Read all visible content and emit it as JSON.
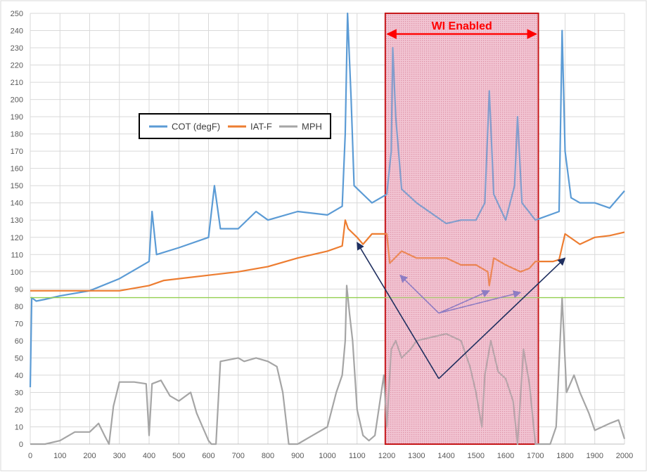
{
  "chart_data": {
    "type": "line",
    "title": "",
    "xlabel": "",
    "ylabel": "",
    "xlim": [
      0,
      2000
    ],
    "ylim": [
      0,
      250
    ],
    "x_ticks": [
      "0",
      "100",
      "200",
      "300",
      "400",
      "500",
      "600",
      "700",
      "800",
      "900",
      "1000",
      "1100",
      "1200",
      "1300",
      "1400",
      "1500",
      "1600",
      "1700",
      "1800",
      "1900",
      "2000"
    ],
    "y_ticks": [
      "0",
      "10",
      "20",
      "30",
      "40",
      "50",
      "60",
      "70",
      "80",
      "90",
      "100",
      "110",
      "120",
      "130",
      "140",
      "150",
      "160",
      "170",
      "180",
      "190",
      "200",
      "210",
      "220",
      "230",
      "240",
      "250"
    ],
    "grid": "vertical and horizontal major gridlines",
    "legend_position": "upper-left, inside plot area",
    "series": [
      {
        "name": "COT (degF)",
        "color": "#5b9bd5",
        "points": [
          [
            0,
            33
          ],
          [
            5,
            85
          ],
          [
            20,
            83
          ],
          [
            50,
            84
          ],
          [
            100,
            86
          ],
          [
            200,
            89
          ],
          [
            300,
            96
          ],
          [
            400,
            106
          ],
          [
            410,
            135
          ],
          [
            425,
            110
          ],
          [
            500,
            114
          ],
          [
            600,
            120
          ],
          [
            620,
            150
          ],
          [
            640,
            125
          ],
          [
            700,
            125
          ],
          [
            760,
            135
          ],
          [
            800,
            130
          ],
          [
            900,
            135
          ],
          [
            1000,
            133
          ],
          [
            1050,
            138
          ],
          [
            1060,
            180
          ],
          [
            1068,
            250
          ],
          [
            1080,
            200
          ],
          [
            1090,
            150
          ],
          [
            1120,
            145
          ],
          [
            1150,
            140
          ],
          [
            1200,
            145
          ],
          [
            1215,
            170
          ],
          [
            1220,
            230
          ],
          [
            1230,
            190
          ],
          [
            1250,
            148
          ],
          [
            1300,
            140
          ],
          [
            1400,
            128
          ],
          [
            1450,
            130
          ],
          [
            1500,
            130
          ],
          [
            1530,
            140
          ],
          [
            1545,
            205
          ],
          [
            1560,
            145
          ],
          [
            1600,
            130
          ],
          [
            1630,
            150
          ],
          [
            1640,
            190
          ],
          [
            1655,
            140
          ],
          [
            1700,
            130
          ],
          [
            1780,
            135
          ],
          [
            1790,
            240
          ],
          [
            1800,
            170
          ],
          [
            1820,
            143
          ],
          [
            1850,
            140
          ],
          [
            1900,
            140
          ],
          [
            1950,
            137
          ],
          [
            2000,
            147
          ]
        ]
      },
      {
        "name": "IAT-F",
        "color": "#ed7d31",
        "points": [
          [
            0,
            89
          ],
          [
            100,
            89
          ],
          [
            200,
            89
          ],
          [
            300,
            89
          ],
          [
            400,
            92
          ],
          [
            450,
            95
          ],
          [
            500,
            96
          ],
          [
            600,
            98
          ],
          [
            700,
            100
          ],
          [
            800,
            103
          ],
          [
            900,
            108
          ],
          [
            1000,
            112
          ],
          [
            1050,
            115
          ],
          [
            1060,
            130
          ],
          [
            1070,
            125
          ],
          [
            1100,
            120
          ],
          [
            1120,
            116
          ],
          [
            1150,
            122
          ],
          [
            1200,
            122
          ],
          [
            1210,
            105
          ],
          [
            1250,
            112
          ],
          [
            1300,
            108
          ],
          [
            1400,
            108
          ],
          [
            1450,
            104
          ],
          [
            1500,
            104
          ],
          [
            1540,
            100
          ],
          [
            1545,
            92
          ],
          [
            1560,
            108
          ],
          [
            1600,
            104
          ],
          [
            1650,
            100
          ],
          [
            1680,
            102
          ],
          [
            1700,
            106
          ],
          [
            1760,
            106
          ],
          [
            1780,
            107
          ],
          [
            1800,
            122
          ],
          [
            1850,
            116
          ],
          [
            1900,
            120
          ],
          [
            1950,
            121
          ],
          [
            2000,
            123
          ]
        ]
      },
      {
        "name": "MPH",
        "color": "#a5a5a5",
        "points": [
          [
            0,
            0
          ],
          [
            50,
            0
          ],
          [
            100,
            2
          ],
          [
            150,
            7
          ],
          [
            200,
            7
          ],
          [
            230,
            12
          ],
          [
            250,
            5
          ],
          [
            265,
            0
          ],
          [
            280,
            22
          ],
          [
            300,
            36
          ],
          [
            350,
            36
          ],
          [
            390,
            35
          ],
          [
            400,
            5
          ],
          [
            410,
            35
          ],
          [
            440,
            37
          ],
          [
            470,
            28
          ],
          [
            500,
            25
          ],
          [
            540,
            30
          ],
          [
            560,
            18
          ],
          [
            580,
            10
          ],
          [
            600,
            2
          ],
          [
            610,
            0
          ],
          [
            625,
            0
          ],
          [
            640,
            48
          ],
          [
            700,
            50
          ],
          [
            720,
            48
          ],
          [
            760,
            50
          ],
          [
            800,
            48
          ],
          [
            830,
            45
          ],
          [
            850,
            30
          ],
          [
            870,
            0
          ],
          [
            900,
            0
          ],
          [
            950,
            5
          ],
          [
            1000,
            10
          ],
          [
            1030,
            30
          ],
          [
            1050,
            40
          ],
          [
            1060,
            60
          ],
          [
            1065,
            92
          ],
          [
            1075,
            75
          ],
          [
            1085,
            60
          ],
          [
            1100,
            20
          ],
          [
            1120,
            5
          ],
          [
            1140,
            2
          ],
          [
            1160,
            5
          ],
          [
            1190,
            40
          ],
          [
            1200,
            10
          ],
          [
            1215,
            55
          ],
          [
            1230,
            60
          ],
          [
            1250,
            50
          ],
          [
            1280,
            55
          ],
          [
            1300,
            60
          ],
          [
            1350,
            62
          ],
          [
            1400,
            64
          ],
          [
            1450,
            60
          ],
          [
            1480,
            45
          ],
          [
            1500,
            30
          ],
          [
            1520,
            10
          ],
          [
            1530,
            40
          ],
          [
            1550,
            60
          ],
          [
            1575,
            42
          ],
          [
            1600,
            38
          ],
          [
            1625,
            25
          ],
          [
            1640,
            0
          ],
          [
            1660,
            55
          ],
          [
            1680,
            35
          ],
          [
            1700,
            0
          ],
          [
            1750,
            0
          ],
          [
            1770,
            10
          ],
          [
            1790,
            85
          ],
          [
            1805,
            30
          ],
          [
            1830,
            40
          ],
          [
            1850,
            30
          ],
          [
            1880,
            18
          ],
          [
            1900,
            8
          ],
          [
            1950,
            12
          ],
          [
            1980,
            14
          ],
          [
            2000,
            3
          ]
        ]
      },
      {
        "name": "",
        "color": "#92d050",
        "points": [
          [
            0,
            85
          ],
          [
            2000,
            85
          ]
        ]
      }
    ],
    "annotations": [
      {
        "text": "WI Enabled",
        "color": "#ff0000",
        "x_range": [
          1195,
          1710
        ],
        "y": 243
      }
    ],
    "shaded_region": {
      "x_range": [
        1195,
        1710
      ],
      "y_range": [
        0,
        250
      ],
      "fill": "#f6d3de",
      "stroke": "#c00000"
    },
    "arrows": [
      {
        "color": "#1f2f5f",
        "from": [
          1375,
          38
        ],
        "to": [
          1100,
          117
        ]
      },
      {
        "color": "#1f2f5f",
        "from": [
          1375,
          38
        ],
        "to": [
          1800,
          108
        ]
      },
      {
        "color": "#8e7cc3",
        "from": [
          1375,
          76
        ],
        "to": [
          1245,
          98
        ]
      },
      {
        "color": "#8e7cc3",
        "from": [
          1375,
          76
        ],
        "to": [
          1545,
          89
        ]
      },
      {
        "color": "#8e7cc3",
        "from": [
          1375,
          76
        ],
        "to": [
          1650,
          88
        ]
      }
    ]
  }
}
